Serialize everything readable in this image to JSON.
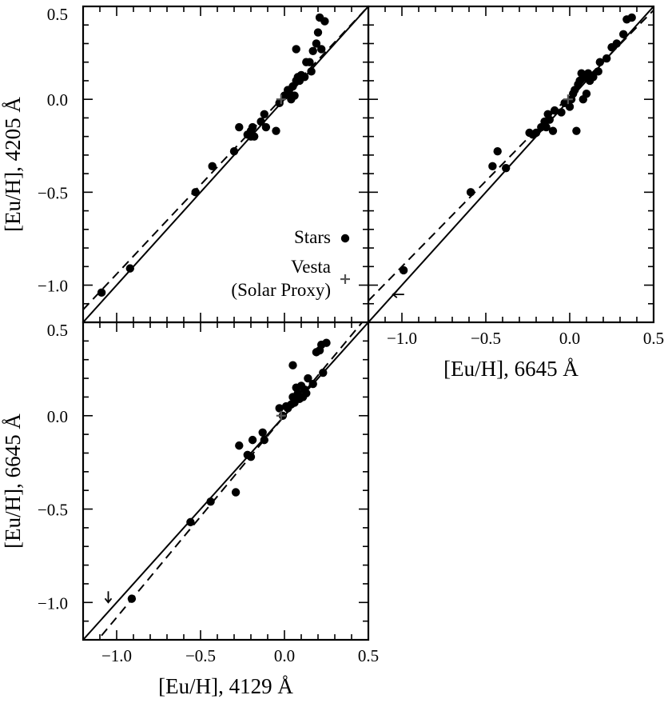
{
  "colors": {
    "stars": "#000000",
    "vesta": "#555555",
    "lines": "#000000"
  },
  "legend": {
    "stars_label": "Stars",
    "vesta_label_line1": "Vesta",
    "vesta_label_line2": "(Solar Proxy)"
  },
  "chart_data": [
    {
      "type": "scatter",
      "panel": "top-left",
      "ylabel": "[Eu/H], 4205 Å",
      "xlabel": "",
      "xlim": [
        -1.2,
        0.5
      ],
      "ylim": [
        -1.2,
        0.5
      ],
      "y_ticks": [
        "0.5",
        "0.0",
        "−0.5",
        "−1.0"
      ],
      "y_tick_values": [
        0.5,
        0.0,
        -0.5,
        -1.0
      ],
      "x_ticks": [],
      "x_tick_values": [],
      "reference_lines": [
        {
          "style": "solid",
          "slope": 1.0,
          "intercept": 0.0
        },
        {
          "style": "dashed",
          "slope": 0.96,
          "intercept": 0.02
        }
      ],
      "series": [
        {
          "name": "Stars",
          "points": [
            [
              -1.09,
              -1.04
            ],
            [
              -0.92,
              -0.91
            ],
            [
              -0.53,
              -0.5
            ],
            [
              -0.43,
              -0.36
            ],
            [
              -0.3,
              -0.28
            ],
            [
              -0.27,
              -0.15
            ],
            [
              -0.22,
              -0.19
            ],
            [
              -0.2,
              -0.17
            ],
            [
              -0.19,
              -0.15
            ],
            [
              -0.2,
              -0.2
            ],
            [
              -0.18,
              -0.2
            ],
            [
              -0.14,
              -0.12
            ],
            [
              -0.12,
              -0.08
            ],
            [
              -0.11,
              -0.15
            ],
            [
              -0.05,
              -0.17
            ],
            [
              -0.03,
              -0.02
            ],
            [
              0.0,
              0.02
            ],
            [
              0.02,
              0.05
            ],
            [
              0.03,
              0.03
            ],
            [
              0.04,
              0.0
            ],
            [
              0.05,
              0.07
            ],
            [
              0.06,
              0.02
            ],
            [
              0.07,
              0.1
            ],
            [
              0.08,
              0.12
            ],
            [
              0.09,
              0.1
            ],
            [
              0.1,
              0.13
            ],
            [
              0.12,
              0.12
            ],
            [
              0.13,
              0.2
            ],
            [
              0.15,
              0.2
            ],
            [
              0.16,
              0.15
            ],
            [
              0.07,
              0.27
            ],
            [
              0.19,
              0.3
            ],
            [
              0.2,
              0.36
            ],
            [
              0.22,
              0.27
            ],
            [
              0.21,
              0.44
            ],
            [
              0.24,
              0.42
            ],
            [
              0.17,
              0.26
            ]
          ]
        },
        {
          "name": "Vesta",
          "points": [
            [
              -0.02,
              0.0
            ]
          ]
        }
      ]
    },
    {
      "type": "scatter",
      "panel": "top-right",
      "xlabel": "[Eu/H], 6645 Å",
      "ylabel": "",
      "xlim": [
        -1.2,
        0.5
      ],
      "ylim": [
        -1.2,
        0.5
      ],
      "x_ticks": [
        "−1.0",
        "−0.5",
        "0.0",
        "0.5"
      ],
      "x_tick_values": [
        -1.0,
        -0.5,
        0.0,
        0.5
      ],
      "y_ticks": [],
      "y_tick_values": [],
      "reference_lines": [
        {
          "style": "solid",
          "slope": 1.0,
          "intercept": 0.0
        },
        {
          "style": "dashed",
          "slope": 0.92,
          "intercept": 0.02
        }
      ],
      "series": [
        {
          "name": "Stars",
          "points": [
            [
              -0.99,
              -0.92
            ],
            [
              -0.59,
              -0.5
            ],
            [
              -0.46,
              -0.36
            ],
            [
              -0.43,
              -0.28
            ],
            [
              -0.38,
              -0.37
            ],
            [
              -0.24,
              -0.18
            ],
            [
              -0.22,
              -0.19
            ],
            [
              -0.2,
              -0.18
            ],
            [
              -0.17,
              -0.15
            ],
            [
              -0.15,
              -0.12
            ],
            [
              -0.14,
              -0.15
            ],
            [
              -0.13,
              -0.08
            ],
            [
              -0.12,
              -0.11
            ],
            [
              -0.1,
              -0.17
            ],
            [
              -0.09,
              -0.06
            ],
            [
              -0.05,
              -0.07
            ],
            [
              -0.03,
              -0.02
            ],
            [
              0.0,
              -0.04
            ],
            [
              0.01,
              0.0
            ],
            [
              0.02,
              0.03
            ],
            [
              0.03,
              0.05
            ],
            [
              0.04,
              -0.17
            ],
            [
              0.05,
              0.08
            ],
            [
              0.06,
              0.1
            ],
            [
              0.07,
              0.14
            ],
            [
              0.08,
              0.0
            ],
            [
              0.09,
              0.12
            ],
            [
              0.1,
              0.03
            ],
            [
              0.11,
              0.14
            ],
            [
              0.12,
              0.1
            ],
            [
              0.14,
              0.12
            ],
            [
              0.17,
              0.15
            ],
            [
              0.18,
              0.2
            ],
            [
              0.22,
              0.22
            ],
            [
              0.25,
              0.28
            ],
            [
              0.28,
              0.3
            ],
            [
              0.32,
              0.35
            ],
            [
              0.34,
              0.43
            ],
            [
              0.37,
              0.44
            ]
          ]
        },
        {
          "name": "Vesta",
          "points": [
            [
              -0.01,
              0.0
            ]
          ]
        },
        {
          "name": "Upper limit",
          "points": [
            [
              -1.02,
              -1.05
            ]
          ]
        }
      ]
    },
    {
      "type": "scatter",
      "panel": "bottom-left",
      "xlabel": "[Eu/H], 4129 Å",
      "ylabel": "[Eu/H], 6645 Å",
      "xlim": [
        -1.2,
        0.5
      ],
      "ylim": [
        -1.2,
        0.5
      ],
      "x_ticks": [
        "−1.0",
        "−0.5",
        "0.0",
        "0.5"
      ],
      "x_tick_values": [
        -1.0,
        -0.5,
        0.0,
        0.5
      ],
      "y_ticks": [
        "0.5",
        "0.0",
        "−0.5",
        "−1.0"
      ],
      "y_tick_values": [
        0.5,
        0.0,
        -0.5,
        -1.0
      ],
      "reference_lines": [
        {
          "style": "solid",
          "slope": 1.0,
          "intercept": 0.0
        },
        {
          "style": "dashed",
          "slope": 1.08,
          "intercept": 0.0
        }
      ],
      "series": [
        {
          "name": "Stars",
          "points": [
            [
              -0.91,
              -0.98
            ],
            [
              -0.56,
              -0.57
            ],
            [
              -0.44,
              -0.46
            ],
            [
              -0.29,
              -0.41
            ],
            [
              -0.27,
              -0.16
            ],
            [
              -0.22,
              -0.21
            ],
            [
              -0.2,
              -0.22
            ],
            [
              -0.19,
              -0.13
            ],
            [
              -0.13,
              -0.09
            ],
            [
              -0.12,
              -0.13
            ],
            [
              -0.03,
              0.04
            ],
            [
              -0.01,
              0.0
            ],
            [
              0.01,
              0.05
            ],
            [
              0.02,
              0.04
            ],
            [
              0.04,
              0.06
            ],
            [
              0.05,
              0.1
            ],
            [
              0.06,
              0.07
            ],
            [
              0.07,
              0.15
            ],
            [
              0.08,
              0.12
            ],
            [
              0.09,
              0.09
            ],
            [
              0.1,
              0.16
            ],
            [
              0.11,
              0.1
            ],
            [
              0.12,
              0.14
            ],
            [
              0.13,
              0.12
            ],
            [
              0.14,
              0.2
            ],
            [
              0.05,
              0.27
            ],
            [
              0.19,
              0.34
            ],
            [
              0.21,
              0.35
            ],
            [
              0.22,
              0.38
            ],
            [
              0.25,
              0.39
            ],
            [
              0.23,
              0.23
            ],
            [
              0.17,
              0.17
            ]
          ]
        },
        {
          "name": "Vesta",
          "points": [
            [
              -0.02,
              0.0
            ]
          ]
        },
        {
          "name": "Upper limit",
          "points": [
            [
              -1.05,
              -0.97
            ]
          ]
        }
      ]
    }
  ]
}
